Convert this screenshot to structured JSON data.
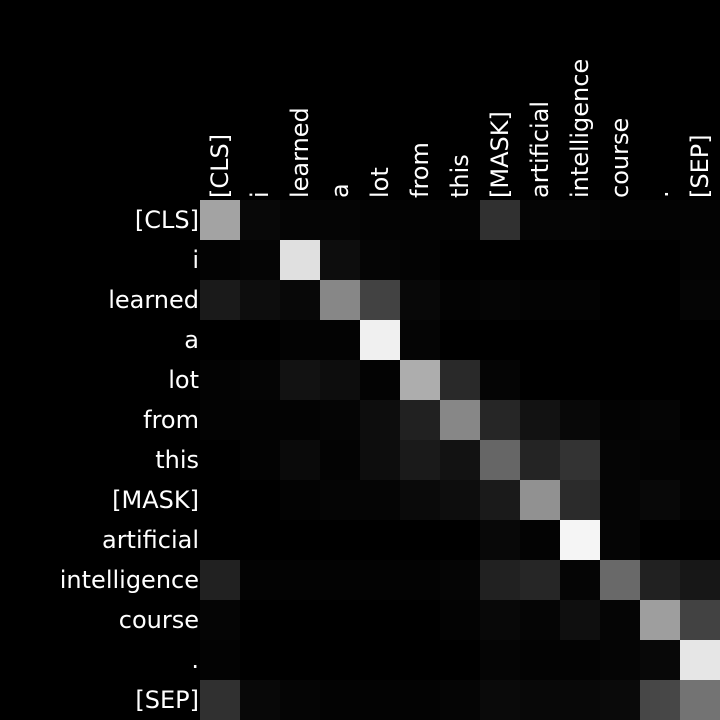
{
  "chart_data": {
    "type": "heatmap",
    "colormap": "grayscale",
    "background": "#000000",
    "x_tokens": [
      "[CLS]",
      "i",
      "learned",
      "a",
      "lot",
      "from",
      "this",
      "[MASK]",
      "artificial",
      "intelligence",
      "course",
      ".",
      "[SEP]"
    ],
    "y_tokens": [
      "[CLS]",
      "i",
      "learned",
      "a",
      "lot",
      "from",
      "this",
      "[MASK]",
      "artificial",
      "intelligence",
      "course",
      ".",
      "[SEP]"
    ],
    "values": [
      [
        0.64,
        0.03,
        0.02,
        0.02,
        0.01,
        0.01,
        0.01,
        0.19,
        0.02,
        0.02,
        0.01,
        0.01,
        0.01
      ],
      [
        0.01,
        0.02,
        0.88,
        0.05,
        0.02,
        0.01,
        0.0,
        0.0,
        0.0,
        0.0,
        0.0,
        0.0,
        0.01
      ],
      [
        0.1,
        0.05,
        0.03,
        0.53,
        0.26,
        0.03,
        0.01,
        0.02,
        0.01,
        0.01,
        0.0,
        0.0,
        0.02
      ],
      [
        0.0,
        0.0,
        0.01,
        0.01,
        0.94,
        0.02,
        0.0,
        0.0,
        0.0,
        0.0,
        0.0,
        0.0,
        0.0
      ],
      [
        0.01,
        0.02,
        0.07,
        0.05,
        0.01,
        0.68,
        0.16,
        0.02,
        0.0,
        0.0,
        0.0,
        0.0,
        0.0
      ],
      [
        0.01,
        0.01,
        0.01,
        0.02,
        0.05,
        0.13,
        0.53,
        0.15,
        0.07,
        0.03,
        0.01,
        0.02,
        0.0
      ],
      [
        0.0,
        0.01,
        0.04,
        0.01,
        0.05,
        0.1,
        0.07,
        0.4,
        0.14,
        0.2,
        0.02,
        0.01,
        0.01
      ],
      [
        0.0,
        0.0,
        0.01,
        0.02,
        0.02,
        0.04,
        0.05,
        0.1,
        0.57,
        0.17,
        0.02,
        0.03,
        0.01
      ],
      [
        0.0,
        0.0,
        0.0,
        0.0,
        0.0,
        0.0,
        0.0,
        0.03,
        0.01,
        0.96,
        0.02,
        0.0,
        0.0
      ],
      [
        0.13,
        0.01,
        0.01,
        0.01,
        0.01,
        0.01,
        0.02,
        0.13,
        0.15,
        0.02,
        0.41,
        0.13,
        0.09
      ],
      [
        0.02,
        0.0,
        0.0,
        0.0,
        0.0,
        0.0,
        0.01,
        0.03,
        0.02,
        0.06,
        0.02,
        0.62,
        0.26
      ],
      [
        0.01,
        0.0,
        0.0,
        0.0,
        0.0,
        0.0,
        0.0,
        0.02,
        0.01,
        0.01,
        0.02,
        0.03,
        0.9
      ],
      [
        0.19,
        0.03,
        0.02,
        0.01,
        0.01,
        0.01,
        0.02,
        0.04,
        0.03,
        0.03,
        0.04,
        0.28,
        0.45
      ]
    ]
  }
}
